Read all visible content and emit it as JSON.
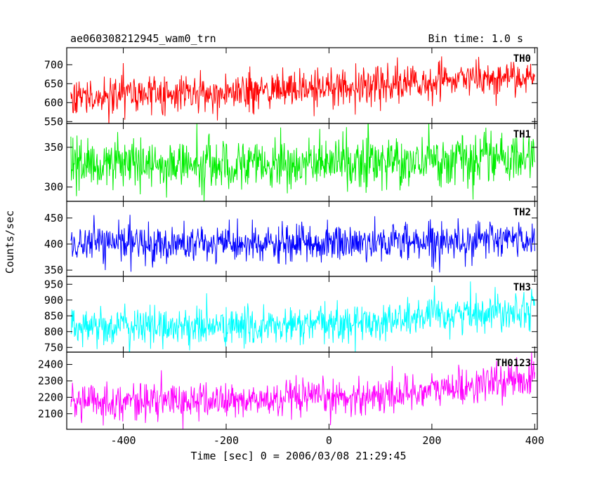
{
  "header": {
    "title": "ae060308212945_wam0_trn",
    "bin_time": "Bin time: 1.0 s"
  },
  "chart_data": {
    "type": "line",
    "xlabel": "Time [sec] 0 = 2006/03/08 21:29:45",
    "ylabel": "Counts/sec",
    "xlim": [
      -510,
      405
    ],
    "xticks": [
      -400,
      -200,
      0,
      200,
      400
    ],
    "x_start": -502,
    "x_end": 400,
    "x_step": 1,
    "panels": [
      {
        "name": "TH0",
        "color": "#ff0000",
        "ylim": [
          545,
          745
        ],
        "yticks": [
          550,
          600,
          650,
          700
        ],
        "trend": [
          [
            -500,
            620
          ],
          [
            -200,
            625
          ],
          [
            0,
            640
          ],
          [
            200,
            655
          ],
          [
            400,
            670
          ]
        ],
        "noise_sd": 24
      },
      {
        "name": "TH1",
        "color": "#00ee00",
        "ylim": [
          282,
          380
        ],
        "yticks": [
          300,
          350
        ],
        "trend": [
          [
            -500,
            328
          ],
          [
            0,
            330
          ],
          [
            400,
            336
          ]
        ],
        "noise_sd": 15
      },
      {
        "name": "TH2",
        "color": "#0000ff",
        "ylim": [
          338,
          482
        ],
        "yticks": [
          350,
          400,
          450
        ],
        "trend": [
          [
            -500,
            402
          ],
          [
            -100,
            398
          ],
          [
            100,
            404
          ],
          [
            400,
            410
          ]
        ],
        "noise_sd": 18
      },
      {
        "name": "TH3",
        "color": "#00ffff",
        "ylim": [
          735,
          975
        ],
        "yticks": [
          750,
          800,
          850,
          900,
          950
        ],
        "trend": [
          [
            -500,
            818
          ],
          [
            -100,
            815
          ],
          [
            100,
            832
          ],
          [
            250,
            855
          ],
          [
            400,
            878
          ]
        ],
        "noise_sd": 30
      },
      {
        "name": "TH0123",
        "color": "#ff00ff",
        "ylim": [
          2005,
          2475
        ],
        "yticks": [
          2100,
          2200,
          2300,
          2400
        ],
        "trend": [
          [
            -500,
            2175
          ],
          [
            -100,
            2180
          ],
          [
            100,
            2210
          ],
          [
            250,
            2260
          ],
          [
            400,
            2320
          ]
        ],
        "noise_sd": 55
      }
    ]
  }
}
